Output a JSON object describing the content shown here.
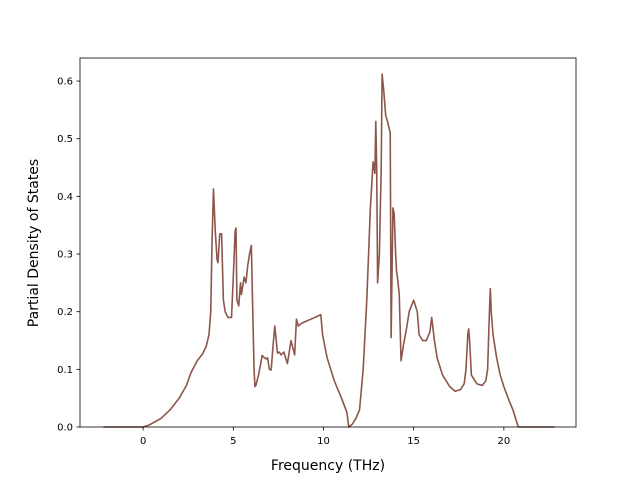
{
  "chart_data": {
    "type": "line",
    "title": "",
    "xlabel": "Frequency (THz)",
    "ylabel": "Partial Density of States",
    "xlim": [
      -3.5,
      24.0
    ],
    "ylim": [
      0.0,
      0.64
    ],
    "xticks": [
      "0",
      "5",
      "10",
      "15",
      "20"
    ],
    "yticks": [
      "0.0",
      "0.1",
      "0.2",
      "0.3",
      "0.4",
      "0.5",
      "0.6"
    ],
    "grid": false,
    "legend": "none",
    "colors": {
      "line": "#8c564b",
      "axis": "#000000",
      "background": "#ffffff"
    },
    "series": [
      {
        "x": [
          -2.2,
          -1.0,
          0.0,
          0.3,
          0.6,
          1.0,
          1.5,
          2.0,
          2.4,
          2.65,
          3.0,
          3.3,
          3.5,
          3.65,
          3.75,
          3.82,
          3.9,
          4.0,
          4.1,
          4.15,
          4.25,
          4.35,
          4.45,
          4.55,
          4.7,
          4.9,
          5.0,
          5.1,
          5.15,
          5.2,
          5.3,
          5.4,
          5.45,
          5.5,
          5.6,
          5.7,
          5.8,
          5.9,
          6.0,
          6.1,
          6.15,
          6.2,
          6.25,
          6.4,
          6.6,
          6.8,
          6.9,
          7.0,
          7.1,
          7.2,
          7.3,
          7.45,
          7.55,
          7.65,
          7.8,
          8.0,
          8.1,
          8.2,
          8.4,
          8.5,
          8.6,
          8.7,
          8.8,
          9.0,
          9.3,
          9.6,
          9.85,
          9.95,
          10.2,
          10.6,
          11.0,
          11.3,
          11.4,
          11.6,
          11.8,
          12.0,
          12.2,
          12.4,
          12.6,
          12.75,
          12.8,
          12.85,
          12.9,
          12.95,
          13.0,
          13.1,
          13.2,
          13.25,
          13.35,
          13.45,
          13.55,
          13.7,
          13.75,
          13.85,
          13.92,
          14.0,
          14.05,
          14.1,
          14.2,
          14.3,
          14.45,
          14.6,
          14.75,
          15.0,
          15.2,
          15.3,
          15.5,
          15.7,
          15.9,
          16.0,
          16.15,
          16.3,
          16.6,
          17.0,
          17.3,
          17.6,
          17.8,
          17.9,
          18.0,
          18.05,
          18.1,
          18.2,
          18.5,
          18.8,
          19.0,
          19.1,
          19.2,
          19.25,
          19.3,
          19.4,
          19.6,
          19.8,
          20.0,
          20.3,
          20.5,
          20.7,
          20.8,
          21.2,
          22.0,
          22.8
        ],
        "y": [
          0.0,
          0.0,
          0.0,
          0.003,
          0.008,
          0.015,
          0.03,
          0.05,
          0.072,
          0.094,
          0.115,
          0.127,
          0.14,
          0.16,
          0.2,
          0.32,
          0.413,
          0.34,
          0.29,
          0.285,
          0.335,
          0.335,
          0.22,
          0.2,
          0.19,
          0.19,
          0.26,
          0.34,
          0.345,
          0.22,
          0.21,
          0.25,
          0.23,
          0.24,
          0.26,
          0.25,
          0.28,
          0.3,
          0.315,
          0.17,
          0.1,
          0.07,
          0.072,
          0.09,
          0.124,
          0.118,
          0.12,
          0.1,
          0.099,
          0.14,
          0.175,
          0.128,
          0.13,
          0.125,
          0.13,
          0.11,
          0.13,
          0.15,
          0.125,
          0.187,
          0.175,
          0.178,
          0.18,
          0.183,
          0.187,
          0.191,
          0.195,
          0.16,
          0.12,
          0.08,
          0.05,
          0.025,
          0.0,
          0.005,
          0.015,
          0.03,
          0.1,
          0.22,
          0.38,
          0.46,
          0.45,
          0.44,
          0.53,
          0.45,
          0.25,
          0.3,
          0.45,
          0.612,
          0.58,
          0.54,
          0.53,
          0.51,
          0.155,
          0.38,
          0.37,
          0.3,
          0.27,
          0.26,
          0.23,
          0.115,
          0.145,
          0.17,
          0.2,
          0.22,
          0.2,
          0.16,
          0.15,
          0.15,
          0.165,
          0.19,
          0.15,
          0.12,
          0.09,
          0.07,
          0.062,
          0.065,
          0.075,
          0.1,
          0.16,
          0.17,
          0.15,
          0.09,
          0.075,
          0.072,
          0.08,
          0.1,
          0.2,
          0.24,
          0.2,
          0.16,
          0.12,
          0.09,
          0.07,
          0.045,
          0.03,
          0.01,
          0.0,
          0.0,
          0.0,
          0.0
        ]
      }
    ]
  }
}
